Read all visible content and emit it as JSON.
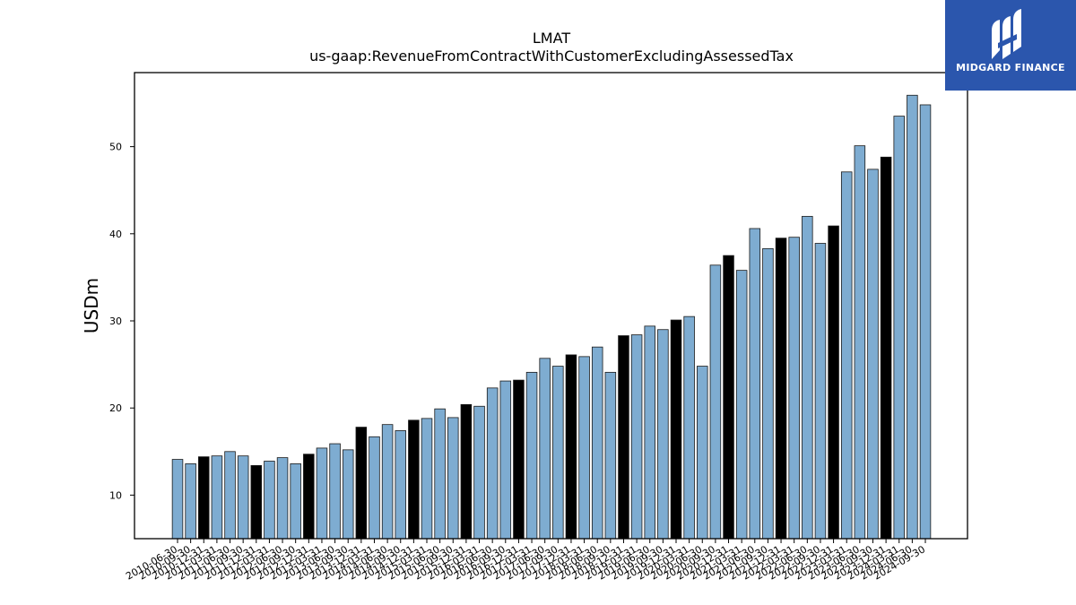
{
  "chart_data": {
    "type": "bar",
    "title": "LMAT",
    "subtitle": "us-gaap:RevenueFromContractWithCustomerExcludingAssessedTax",
    "xlabel": "",
    "ylabel": "USDm",
    "ylim": [
      5,
      58.5
    ],
    "yticks": [
      10,
      20,
      30,
      40,
      50
    ],
    "grid": false,
    "colors": {
      "quarter": "#7eacd1",
      "annual": "#000000",
      "edge": "#1a1a1a"
    },
    "categories": [
      "2010-06-30",
      "2010-09-30",
      "2010-12-31",
      "2011-03-31",
      "2011-06-30",
      "2011-09-30",
      "2011-12-31",
      "2012-03-31",
      "2012-06-30",
      "2012-09-30",
      "2012-12-31",
      "2013-03-31",
      "2013-06-30",
      "2013-09-30",
      "2013-12-31",
      "2014-03-31",
      "2014-06-30",
      "2014-09-30",
      "2014-12-31",
      "2015-03-31",
      "2015-06-30",
      "2015-09-30",
      "2015-12-31",
      "2016-03-31",
      "2016-06-30",
      "2016-09-30",
      "2016-12-31",
      "2017-03-31",
      "2017-06-30",
      "2017-09-30",
      "2017-12-31",
      "2018-03-31",
      "2018-06-30",
      "2018-09-30",
      "2018-12-31",
      "2019-03-31",
      "2019-06-30",
      "2019-09-30",
      "2019-12-31",
      "2020-03-31",
      "2020-06-30",
      "2020-09-30",
      "2020-12-31",
      "2021-03-31",
      "2021-06-30",
      "2021-09-30",
      "2021-12-31",
      "2022-03-31",
      "2022-06-30",
      "2022-09-30",
      "2022-12-31",
      "2023-03-31",
      "2023-06-30",
      "2023-09-30",
      "2023-12-31",
      "2024-03-31",
      "2024-06-30",
      "2024-09-30"
    ],
    "values": [
      14.1,
      13.6,
      14.4,
      14.5,
      15.0,
      14.5,
      13.4,
      13.9,
      14.3,
      13.6,
      14.7,
      15.4,
      15.9,
      15.2,
      17.8,
      16.7,
      18.1,
      17.4,
      18.6,
      18.8,
      19.9,
      18.9,
      20.4,
      20.2,
      22.3,
      23.1,
      23.2,
      24.1,
      25.7,
      24.8,
      26.1,
      25.9,
      27.0,
      24.1,
      28.3,
      28.4,
      29.4,
      29.0,
      30.1,
      30.5,
      24.8,
      36.4,
      37.5,
      35.8,
      40.6,
      38.3,
      39.5,
      39.6,
      42.0,
      38.9,
      40.9,
      47.1,
      50.1,
      47.4,
      48.8,
      53.5,
      55.9,
      54.8
    ],
    "annual": [
      false,
      false,
      true,
      false,
      false,
      false,
      true,
      false,
      false,
      false,
      true,
      false,
      false,
      false,
      true,
      false,
      false,
      false,
      true,
      false,
      false,
      false,
      true,
      false,
      false,
      false,
      true,
      false,
      false,
      false,
      true,
      false,
      false,
      false,
      true,
      false,
      false,
      false,
      true,
      false,
      false,
      false,
      true,
      false,
      false,
      false,
      true,
      false,
      false,
      false,
      true,
      false,
      false,
      false,
      true,
      false,
      false,
      false
    ]
  },
  "logo": {
    "text": "MIDGARD FINANCE",
    "icon": "midgard-logo-icon"
  }
}
